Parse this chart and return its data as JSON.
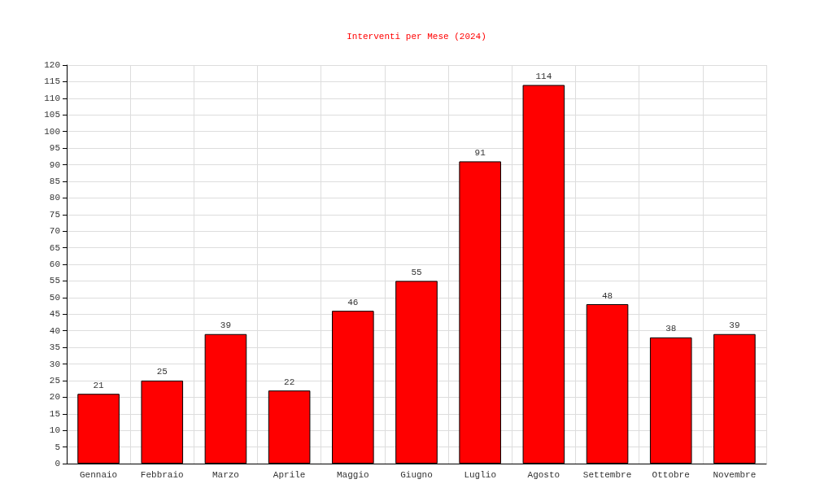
{
  "chart_data": {
    "type": "bar",
    "title": "Interventi per Mese (2024)",
    "categories": [
      "Gennaio",
      "Febbraio",
      "Marzo",
      "Aprile",
      "Maggio",
      "Giugno",
      "Luglio",
      "Agosto",
      "Settembre",
      "Ottobre",
      "Novembre"
    ],
    "values": [
      21,
      25,
      39,
      22,
      46,
      55,
      91,
      114,
      48,
      38,
      39
    ],
    "color": "#ff0000",
    "ylim": [
      0,
      120
    ],
    "yticks": [
      0,
      5,
      10,
      15,
      20,
      25,
      30,
      35,
      40,
      45,
      50,
      55,
      60,
      65,
      70,
      75,
      80,
      85,
      90,
      95,
      100,
      105,
      110,
      115,
      120
    ],
    "grid": true,
    "data_labels": true
  }
}
